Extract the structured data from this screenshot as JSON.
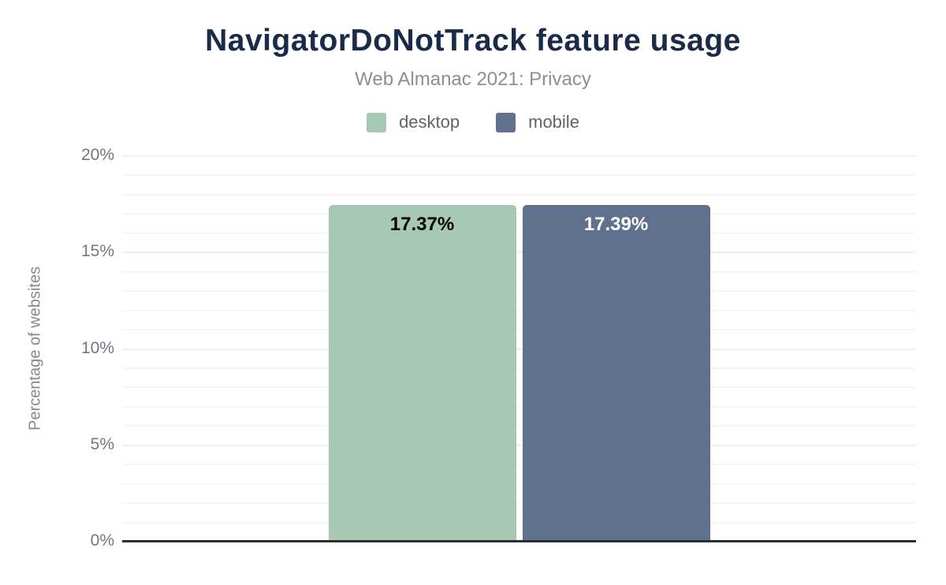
{
  "chart_data": {
    "type": "bar",
    "title": "NavigatorDoNotTrack feature usage",
    "subtitle": "Web Almanac 2021: Privacy",
    "ylabel": "Percentage of websites",
    "xlabel": "",
    "ylim": [
      0,
      20
    ],
    "grid": true,
    "minor_grid_step_percent": 1,
    "legend_position": "top",
    "categories": [
      "desktop",
      "mobile"
    ],
    "series": [
      {
        "name": "desktop",
        "value": 17.37,
        "data_label": "17.37%",
        "color": "#a6c8b4",
        "label_color": "#000000"
      },
      {
        "name": "mobile",
        "value": 17.39,
        "data_label": "17.39%",
        "color": "#60718e",
        "label_color": "#ffffff"
      }
    ],
    "yticks": [
      {
        "value": 0,
        "label": "0%"
      },
      {
        "value": 5,
        "label": "5%"
      },
      {
        "value": 10,
        "label": "10%"
      },
      {
        "value": 15,
        "label": "15%"
      },
      {
        "value": 20,
        "label": "20%"
      }
    ]
  },
  "colors": {
    "title": "#1a2b49",
    "subtitle": "#898f94",
    "axis_line": "#2b2f33",
    "tick_text": "#73777c",
    "grid_minor": "#f6f6f7",
    "grid_major": "#efeff1",
    "desktop": "#a6c8b4",
    "mobile": "#60718e"
  }
}
